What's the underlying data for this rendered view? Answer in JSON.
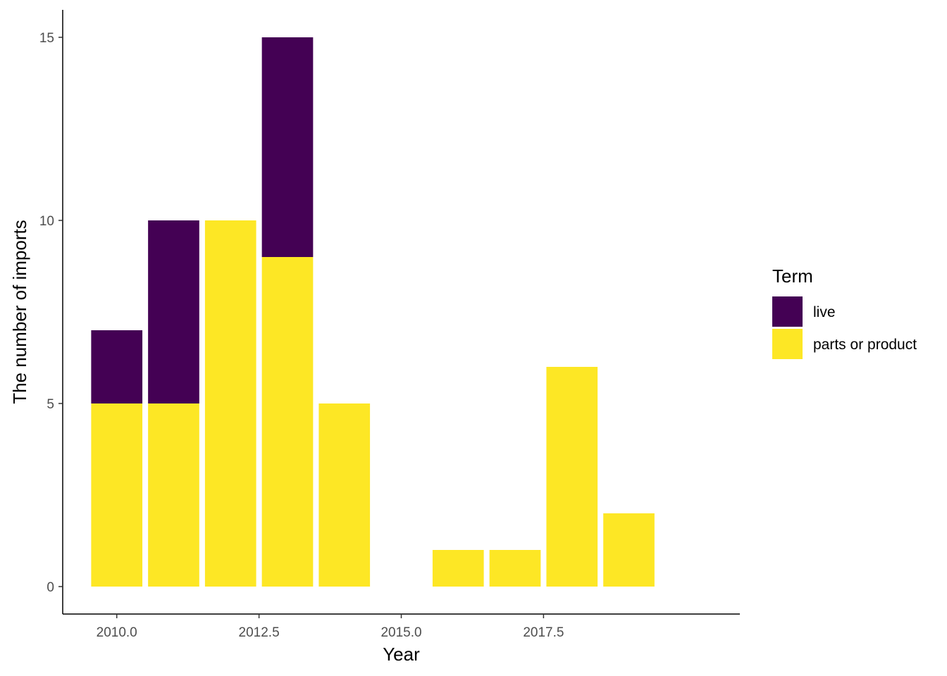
{
  "chart_data": {
    "type": "bar",
    "stacked": true,
    "xlabel": "Year",
    "ylabel": "The number of imports",
    "x": [
      2010,
      2011,
      2012,
      2013,
      2014,
      2016,
      2017,
      2018,
      2019
    ],
    "series": [
      {
        "name": "parts or product",
        "color": "#FDE725",
        "values": [
          5,
          5,
          10,
          9,
          5,
          1,
          1,
          6,
          2
        ]
      },
      {
        "name": "live",
        "color": "#440154",
        "values": [
          2,
          5,
          0,
          6,
          0,
          0,
          0,
          0,
          0
        ]
      }
    ],
    "xlim": [
      2009.05,
      2020.95
    ],
    "ylim": [
      -0.75,
      15.75
    ],
    "xticks": [
      2010.0,
      2012.5,
      2015.0,
      2017.5
    ],
    "xtick_labels": [
      "2010.0",
      "2012.5",
      "2015.0",
      "2017.5"
    ],
    "yticks": [
      0,
      5,
      10,
      15
    ],
    "ytick_labels": [
      "0",
      "5",
      "10",
      "15"
    ],
    "bar_width": 0.9,
    "grid": false,
    "legend": {
      "title": "Term",
      "position": "right",
      "entries": [
        {
          "label": "live",
          "color": "#440154"
        },
        {
          "label": "parts or product",
          "color": "#FDE725"
        }
      ]
    }
  }
}
